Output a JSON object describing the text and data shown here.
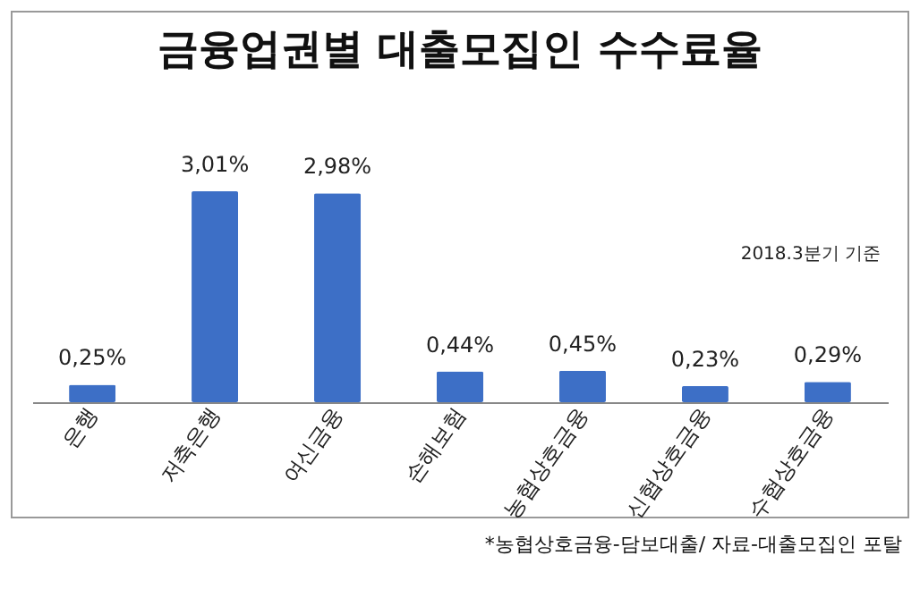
{
  "chart_data": {
    "type": "bar",
    "title": "금융업권별 대출모집인 수수료율",
    "categories": [
      "은행",
      "저축은행",
      "여신금융",
      "손해보험",
      "농협상호금융",
      "신협상호금융",
      "수협상호금융"
    ],
    "values": [
      0.25,
      3.01,
      2.98,
      0.44,
      0.45,
      0.23,
      0.29
    ],
    "value_labels": [
      "0,25%",
      "3,01%",
      "2,98%",
      "0,44%",
      "0,45%",
      "0,23%",
      "0,29%"
    ],
    "color": "#3d6fc6",
    "annotations": [
      "2018.3분기 기준",
      "*농협상호금융-담보대출/ 자료-대출모집인 포탈"
    ]
  }
}
